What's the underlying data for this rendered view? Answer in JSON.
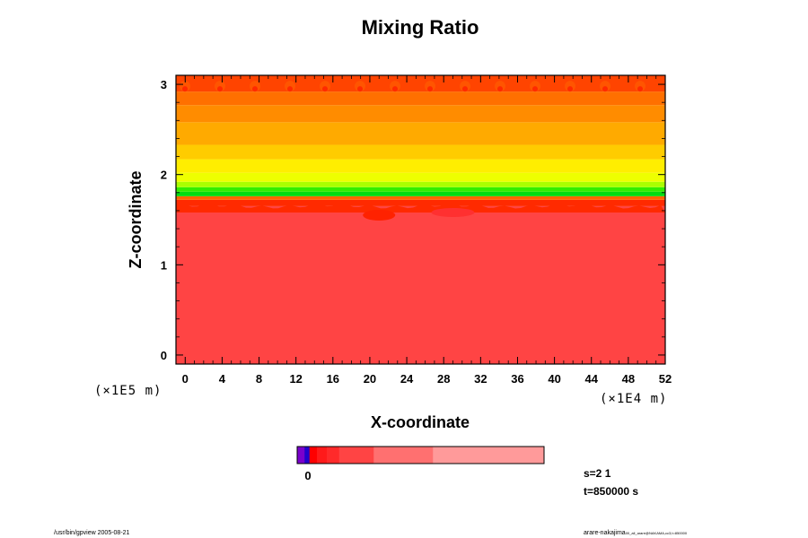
{
  "chart_data": {
    "type": "heatmap",
    "title": "Mixing Ratio",
    "xlabel": "X-coordinate",
    "ylabel": "Z-coordinate",
    "x_unit": "(×1E4 m)",
    "y_unit": "(×1E5 m)",
    "xlim": [
      -1,
      52
    ],
    "ylim": [
      -0.1,
      3.1
    ],
    "x_ticks": [
      0,
      4,
      8,
      12,
      16,
      20,
      24,
      28,
      32,
      36,
      40,
      44,
      48,
      52
    ],
    "y_ticks": [
      0,
      1,
      2,
      3
    ],
    "bands": [
      {
        "z0": -0.1,
        "z1": 1.65,
        "color": "#ff4444"
      },
      {
        "z0": 1.65,
        "z1": 1.72,
        "color": "#ff2a00"
      },
      {
        "z0": 1.72,
        "z1": 1.76,
        "color": "#ff6600"
      },
      {
        "z0": 1.76,
        "z1": 1.81,
        "color": "#00dd11"
      },
      {
        "z0": 1.81,
        "z1": 1.86,
        "color": "#33ee00"
      },
      {
        "z0": 1.86,
        "z1": 1.92,
        "color": "#aaff00"
      },
      {
        "z0": 1.92,
        "z1": 2.02,
        "color": "#eeff00"
      },
      {
        "z0": 2.02,
        "z1": 2.17,
        "color": "#ffee00"
      },
      {
        "z0": 2.17,
        "z1": 2.33,
        "color": "#ffcc00"
      },
      {
        "z0": 2.33,
        "z1": 2.58,
        "color": "#ffaa00"
      },
      {
        "z0": 2.58,
        "z1": 2.77,
        "color": "#ff8c00"
      },
      {
        "z0": 2.77,
        "z1": 2.92,
        "color": "#ff7000"
      },
      {
        "z0": 2.92,
        "z1": 3.1,
        "color": "#ff4400"
      }
    ],
    "colorbar": {
      "zero_label": "0",
      "segments": [
        {
          "frac": 0.03,
          "color": "#7a00cc"
        },
        {
          "frac": 0.02,
          "color": "#2200cc"
        },
        {
          "frac": 0.03,
          "color": "#ff0000"
        },
        {
          "frac": 0.04,
          "color": "#ff1a1a"
        },
        {
          "frac": 0.05,
          "color": "#ff2a2a"
        },
        {
          "frac": 0.14,
          "color": "#ff4444"
        },
        {
          "frac": 0.24,
          "color": "#ff7070"
        },
        {
          "frac": 0.45,
          "color": "#ff9a9a"
        }
      ]
    },
    "grid": false,
    "legend": "bottom"
  },
  "info": {
    "scale": "s=2 1",
    "time": "t=850000 s"
  },
  "footer": {
    "left": "/usr/bin/gpview 2005-08-21",
    "right": "arare-nakajima",
    "right_small": "00_all_arare@NAKAMA,cc3,t=850000"
  }
}
